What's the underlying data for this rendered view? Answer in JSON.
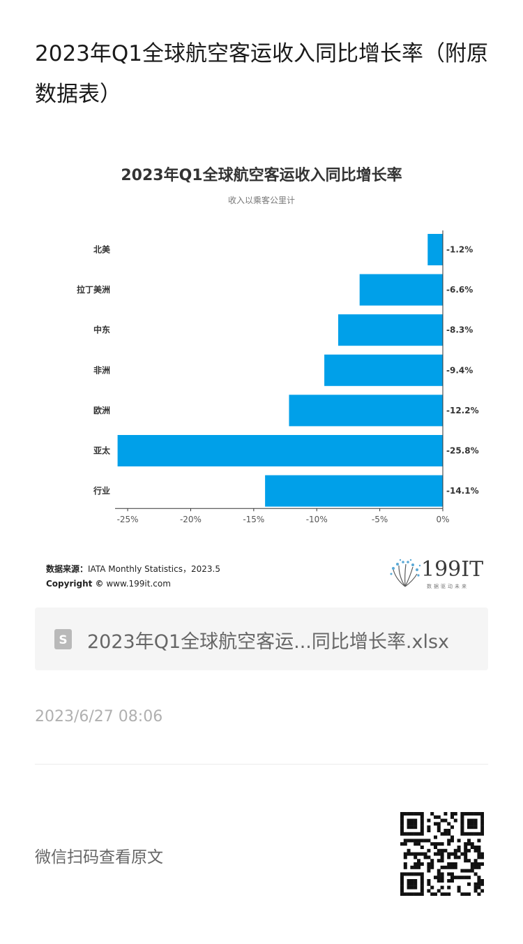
{
  "article": {
    "title": "2023年Q1全球航空客运收入同比增长率（附原数据表）"
  },
  "chart_data": {
    "type": "bar",
    "orientation": "horizontal",
    "title": "2023年Q1全球航空客运收入同比增长率",
    "subtitle": "收入以乘客公里计",
    "categories": [
      "北美",
      "拉丁美洲",
      "中东",
      "非洲",
      "欧洲",
      "亚太",
      "行业"
    ],
    "values": [
      -1.2,
      -6.6,
      -8.3,
      -9.4,
      -12.2,
      -25.8,
      -14.1
    ],
    "value_labels": [
      "-1.2%",
      "-6.6%",
      "-8.3%",
      "-9.4%",
      "-12.2%",
      "-25.8%",
      "-14.1%"
    ],
    "xlim": [
      -26,
      0
    ],
    "x_ticks": [
      -25,
      -20,
      -15,
      -10,
      -5,
      0
    ],
    "x_tick_labels": [
      "-25%",
      "-20%",
      "-15%",
      "-10%",
      "-5%",
      "0%"
    ],
    "bar_color": "#00a0e9",
    "grid": false
  },
  "source": {
    "label": "数据来源：",
    "text": "IATA Monthly Statistics，2023.5",
    "copyright_label": "Copyright ©",
    "copyright_text": " www.199it.com"
  },
  "brand": {
    "name": "199IT",
    "slogan": "数据驱动未来"
  },
  "file": {
    "name": "2023年Q1全球航空客运...同比增长率.xlsx",
    "icon": "spreadsheet-file-icon"
  },
  "meta": {
    "timestamp": "2023/6/27 08:06",
    "qr_label": "微信扫码查看原文"
  }
}
